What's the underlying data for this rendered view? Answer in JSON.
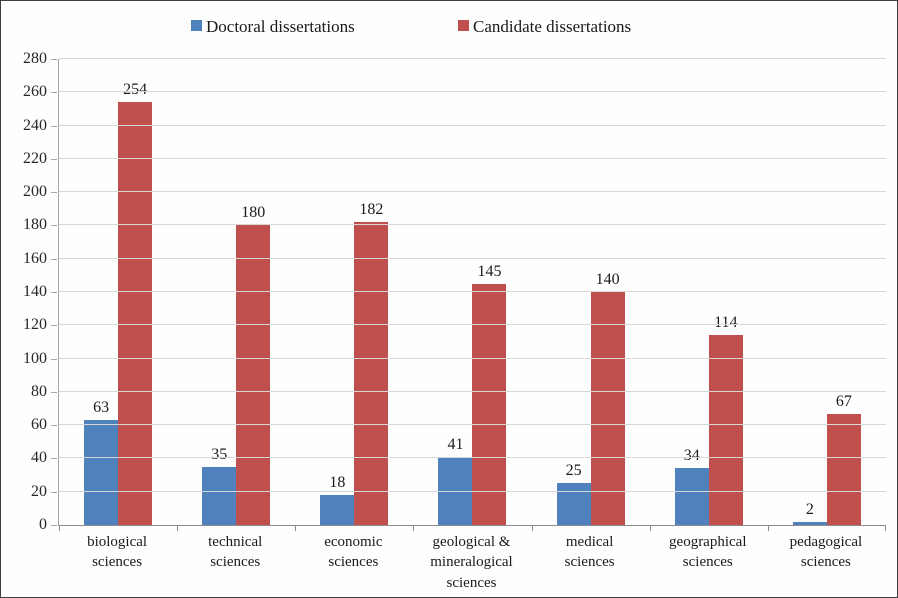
{
  "chart_data": {
    "type": "bar",
    "title": "",
    "xlabel": "",
    "ylabel": "",
    "categories": [
      "biological sciences",
      "technical sciences",
      "economic sciences",
      "geological & mineralogical sciences",
      "medical sciences",
      "geographical sciences",
      "pedagogical sciences"
    ],
    "series": [
      {
        "name": "Doctoral dissertations",
        "color": "#4f81bd",
        "values": [
          63,
          35,
          18,
          41,
          25,
          34,
          2
        ]
      },
      {
        "name": "Candidate dissertations",
        "color": "#c0504d",
        "values": [
          254,
          180,
          182,
          145,
          140,
          114,
          67
        ]
      }
    ],
    "ylim": [
      0,
      280
    ],
    "ytick_step": 20,
    "grid": true,
    "legend_position": "top",
    "data_labels": true
  },
  "style": {
    "gridline_color": "#d6d6d6",
    "axis_color": "#8c8c8c",
    "background": "#fefefe"
  }
}
